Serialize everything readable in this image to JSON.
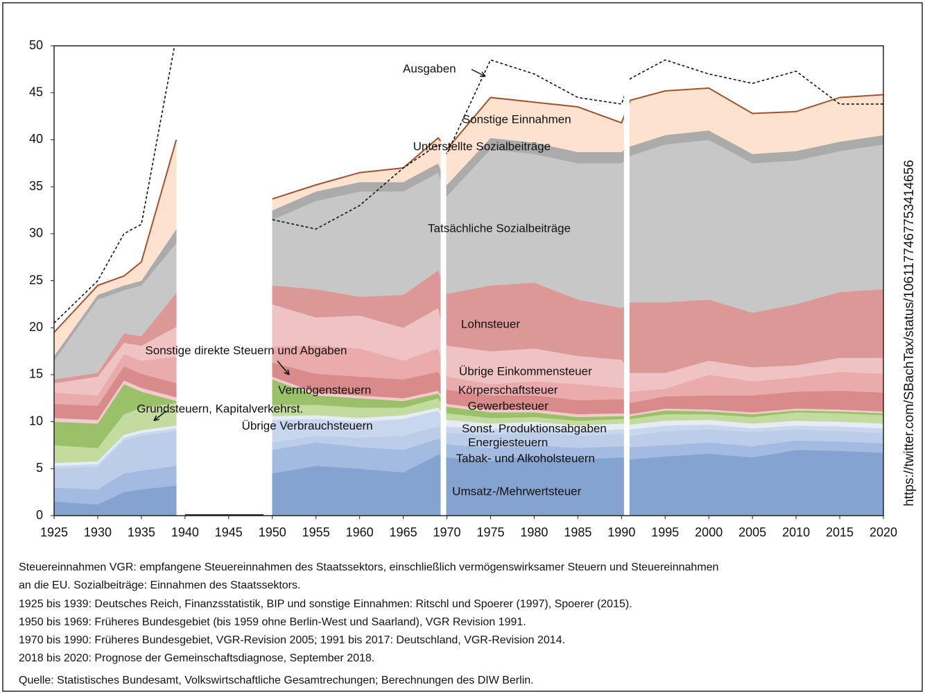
{
  "chart_data": {
    "type": "area",
    "stacked": true,
    "x": [
      1925,
      1930,
      1933,
      1935,
      1939,
      1945,
      1950,
      1955,
      1960,
      1965,
      1969,
      1970,
      1975,
      1980,
      1985,
      1990,
      1991,
      1995,
      2000,
      2005,
      2010,
      2015,
      2020
    ],
    "series": [
      {
        "name": "Umsatz-/Mehrwertsteuer",
        "color": "#84a3d0",
        "values": [
          1.5,
          1.2,
          2.5,
          2.8,
          3.2,
          null,
          4.5,
          5.3,
          5,
          4.6,
          6.5,
          6.2,
          5.8,
          6.4,
          6,
          6.2,
          6,
          6.3,
          6.6,
          6.2,
          7,
          6.9,
          6.7
        ]
      },
      {
        "name": "Tabak- und Alkoholsteuern",
        "color": "#a3bbe0",
        "values": [
          1.5,
          1.6,
          2,
          2,
          2.1,
          null,
          2.5,
          2.5,
          2.3,
          2.4,
          1.7,
          1.4,
          1.4,
          1.1,
          1.2,
          1.2,
          1.3,
          1.2,
          1.2,
          1.2,
          1,
          1,
          1
        ]
      },
      {
        "name": "Energiesteuern",
        "color": "#bccde9",
        "values": [
          2,
          2.4,
          3.5,
          3.7,
          3.7,
          null,
          0.8,
          0.7,
          1,
          1.5,
          1.3,
          1.2,
          1.4,
          1.4,
          1.3,
          1.3,
          1.2,
          1.5,
          1.4,
          1.5,
          1.2,
          1.1,
          1.1
        ]
      },
      {
        "name": "Übrige Verbrauchsteuern",
        "color": "#c9d7ee",
        "values": [
          0.3,
          0.3,
          0.3,
          0.3,
          0.3,
          null,
          2.4,
          1.8,
          1.7,
          1.8,
          1.7,
          0.7,
          0.6,
          0.5,
          0.5,
          0.5,
          0.7,
          0.6,
          0.5,
          0.4,
          0.4,
          0.5,
          0.5
        ]
      },
      {
        "name": "Sonst. Produktionsabgaben",
        "color": "#e6ecf6",
        "values": [
          0.3,
          0.3,
          0.3,
          0.3,
          0.3,
          null,
          0.4,
          0.4,
          0.4,
          0.4,
          0.3,
          0.7,
          0.6,
          0.6,
          0.6,
          0.6,
          0.5,
          0.5,
          0.5,
          0.5,
          0.5,
          0.5,
          0.5
        ]
      },
      {
        "name": "Grundsteuern, Kapitalverkehrst.",
        "color": "#c4dba0",
        "values": [
          1.9,
          1.4,
          2.2,
          2.4,
          2.4,
          null,
          1.2,
          1.1,
          1.1,
          0.8,
          1,
          0.7,
          0.6,
          0.5,
          0.5,
          0.5,
          0.6,
          0.7,
          0.6,
          0.7,
          0.9,
          0.9,
          0.9
        ]
      },
      {
        "name": "Vermögensteuern",
        "color": "#9ac06a",
        "values": [
          2.5,
          2.6,
          3.2,
          1.7,
          0.2,
          null,
          2.7,
          1,
          1,
          0.7,
          0.5,
          0.7,
          0.6,
          0.5,
          0.4,
          0.3,
          0.3,
          0.4,
          0.3,
          0.3,
          0.2,
          0.2,
          0.2
        ]
      },
      {
        "name": "Sonstige direkte Steuern und Abgaben",
        "color": "#f2cccc",
        "values": [
          0.4,
          0.4,
          0.4,
          0.4,
          0.4,
          null,
          0.3,
          0.3,
          0.3,
          0.3,
          0.3,
          0.3,
          0.3,
          0.3,
          0.3,
          0.3,
          0.2,
          0.2,
          0.2,
          0.2,
          0.2,
          0.2,
          0.2
        ]
      },
      {
        "name": "Gewerbesteuer",
        "color": "#d98a8a",
        "values": [
          1.5,
          1.5,
          1.5,
          1.5,
          1.5,
          null,
          1.5,
          2,
          2,
          2,
          2,
          1.5,
          1.5,
          1.5,
          1.5,
          1.5,
          1.2,
          1.3,
          1.5,
          1.8,
          1.8,
          2,
          2
        ]
      },
      {
        "name": "Körperschaftsteuer",
        "color": "#e9abab",
        "values": [
          1.2,
          1.1,
          1.3,
          1.4,
          2.8,
          null,
          1.7,
          3,
          3,
          2,
          2.5,
          1.4,
          1.2,
          1.5,
          1.7,
          1.2,
          1.2,
          0.8,
          2.2,
          1.5,
          1.5,
          2,
          2
        ]
      },
      {
        "name": "Übrige Einkommensteuer",
        "color": "#efc3c3",
        "values": [
          1,
          2,
          1.2,
          1.6,
          3.2,
          null,
          4.5,
          3,
          3.5,
          3.5,
          4.3,
          3.3,
          3.5,
          3.5,
          3,
          3,
          2,
          1.7,
          1.5,
          1.5,
          1.3,
          1.5,
          1.7
        ]
      },
      {
        "name": "Lohnsteuer",
        "color": "#dc9797",
        "values": [
          0.4,
          0.4,
          1,
          1,
          3.6,
          null,
          2,
          3,
          2,
          3.5,
          4,
          5.5,
          7,
          7,
          6,
          5.5,
          7.5,
          7.5,
          6.5,
          5.8,
          6.5,
          7,
          7.3
        ]
      },
      {
        "name": "Tatsächliche Sozialbeiträge",
        "color": "#c7c7c7",
        "values": [
          2,
          7.8,
          4.6,
          5.4,
          5.3,
          null,
          7,
          9.4,
          11.2,
          11,
          10.4,
          10.4,
          14.5,
          13.7,
          14.5,
          15.4,
          15.6,
          16.8,
          17,
          15.9,
          15.3,
          15,
          15.4
        ]
      },
      {
        "name": "Unterstellte Sozialbeiträge",
        "color": "#ababab",
        "values": [
          0.5,
          0.5,
          0.5,
          0.5,
          1.5,
          null,
          1,
          1,
          1,
          1,
          1,
          1.2,
          1.2,
          1.2,
          1.2,
          1.2,
          1,
          1,
          1,
          1,
          1,
          1,
          1
        ]
      },
      {
        "name": "Sonstige Einnahmen",
        "color": "#fce2cf",
        "values": [
          2.5,
          1,
          1,
          2,
          9.5,
          null,
          1.2,
          0.7,
          1,
          1.5,
          2.7,
          3.8,
          4.3,
          4.3,
          4.8,
          3.1,
          4.9,
          4.7,
          4.5,
          4.3,
          4.2,
          4.7,
          4.3
        ]
      }
    ],
    "line": {
      "name": "Ausgaben",
      "color": "#111111",
      "values": [
        20.5,
        25,
        30,
        31,
        51,
        null,
        31.5,
        30.5,
        33,
        37,
        39.5,
        38.5,
        48.5,
        47,
        44.5,
        43.8,
        46.5,
        48.5,
        47,
        46,
        47.3,
        43.8,
        43.8
      ]
    },
    "total_line_color": "#a0522d",
    "xlim": [
      1925,
      2020
    ],
    "xticks": [
      1925,
      1930,
      1935,
      1940,
      1945,
      1950,
      1955,
      1960,
      1965,
      1970,
      1975,
      1980,
      1985,
      1990,
      1995,
      2000,
      2005,
      2010,
      2015,
      2020
    ],
    "ylim": [
      0,
      50
    ],
    "yticks": [
      0,
      5,
      10,
      15,
      20,
      25,
      30,
      35,
      40,
      45,
      50
    ],
    "grid": false,
    "notes": [
      "Steuereinnahmen VGR: empfangene Steuereinnahmen des Staatssektors, einschließlich vermögenswirksamer Steuern und Steuereinnahmen",
      "an die EU. Sozialbeiträge: Einnahmen des Staatssektors.",
      "1925 bis 1939: Deutsches Reich, Finanzsstatistik, BIP und sonstige Einnahmen: Ritschl und Spoerer (1997), Spoerer (2015).",
      "1950 bis 1969: Früheres Bundesgebiet (bis 1959 ohne Berlin-West und Saarland), VGR Revision 1991.",
      "1970 bis 1990: Früheres Bundesgebiet, VGR-Revision 2005; 1991 bis 2017: Deutschland, VGR-Revision 2014.",
      "2018 bis 2020: Prognose der Gemeinschaftsdiagnose, September 2018.",
      "Quelle: Statistisches Bundesamt, Volkswirtschaftliche Gesamtrechungen; Berechnungen des DIW Berlin."
    ],
    "source_url": "https://twitter.com/SBachTax/status/1061177467753414656"
  }
}
